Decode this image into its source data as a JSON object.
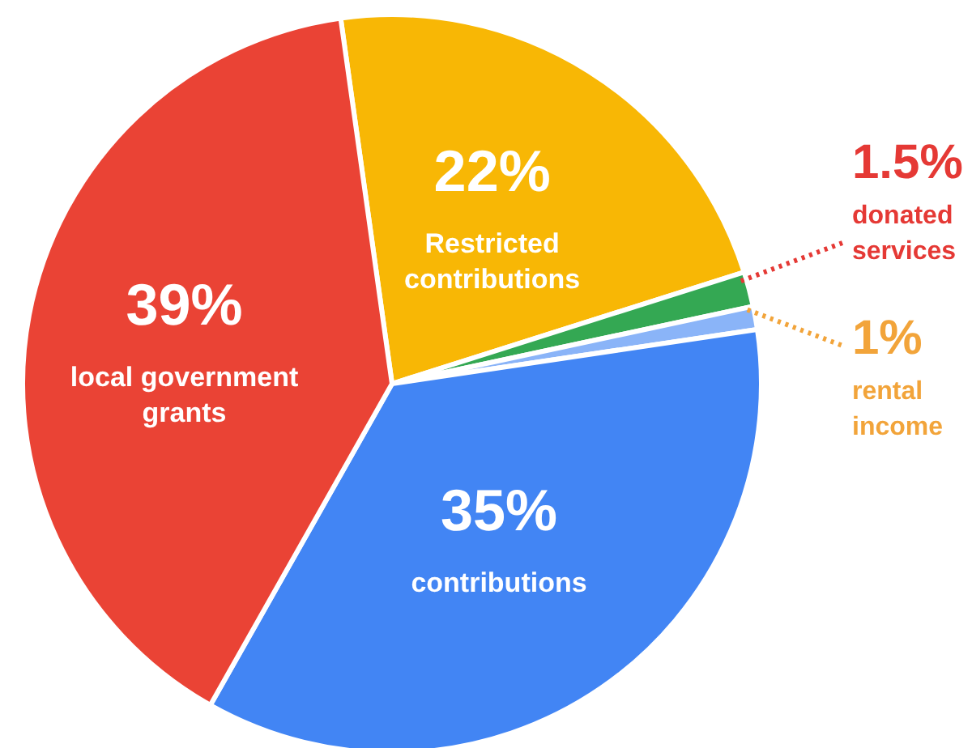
{
  "chart_data": {
    "type": "pie",
    "categories": [
      "Restricted contributions",
      "donated services",
      "rental income",
      "contributions",
      "local government grants"
    ],
    "values": [
      22,
      1.5,
      1,
      35,
      39
    ],
    "colors": [
      "#f8b705",
      "#34a853",
      "#8ab4f8",
      "#4285f4",
      "#ea4335"
    ],
    "value_labels": [
      "22%",
      "1.5%",
      "1%",
      "35%",
      "39%"
    ],
    "legend": false
  }
}
